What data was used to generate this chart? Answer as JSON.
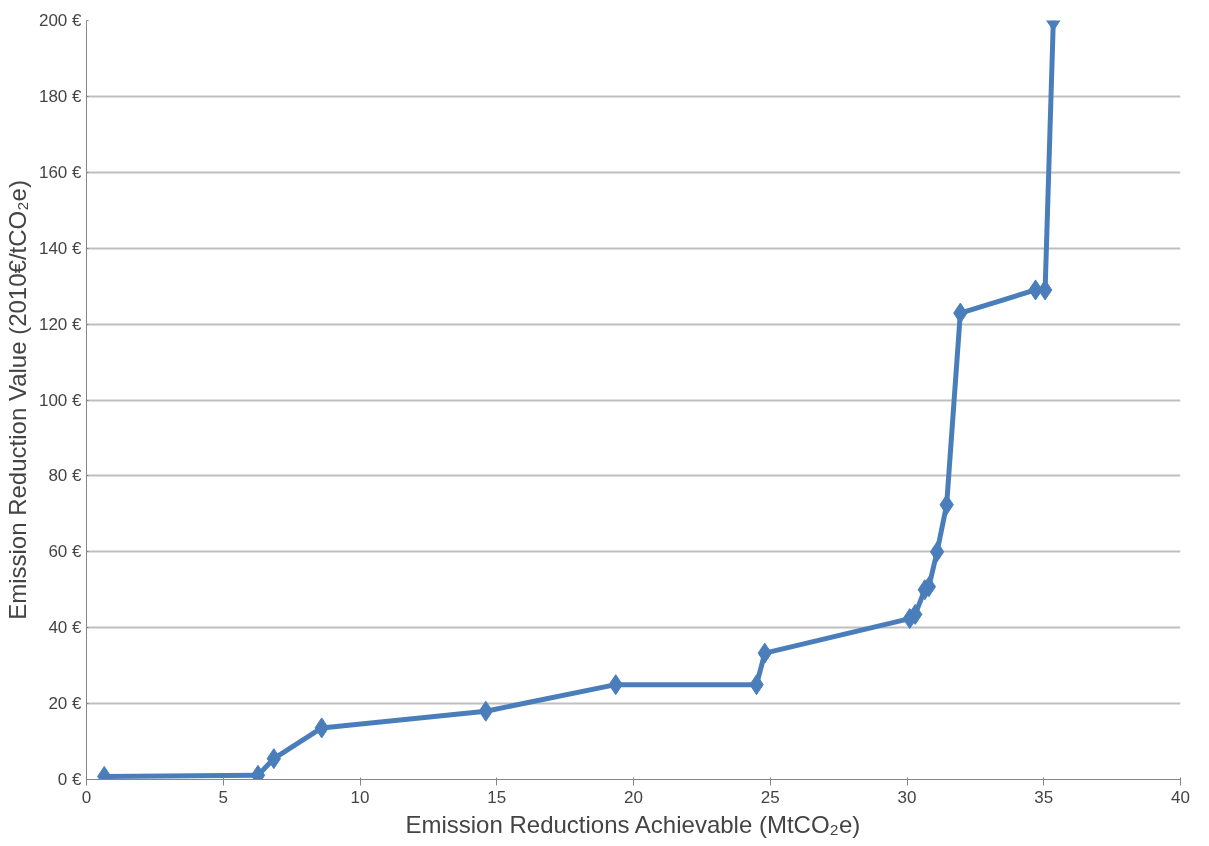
{
  "chart_data": {
    "type": "line",
    "xlabel": "Emission Reductions Achievable (MtCO₂e)",
    "ylabel": "Emission Reduction Value (2010€/tCO₂e)",
    "x": [
      0.65,
      6.27,
      6.85,
      8.6,
      14.6,
      19.35,
      24.5,
      24.8,
      30.1,
      30.3,
      30.65,
      30.8,
      31.1,
      31.45,
      31.95,
      34.7,
      35.05,
      35.35
    ],
    "series": [
      {
        "color": "#4a7ebb",
        "values": [
          0.8,
          1.1,
          5.5,
          13.6,
          18,
          25,
          25,
          33.3,
          42.4,
          43.5,
          50,
          50.8,
          60,
          72.4,
          122.9,
          129,
          129,
          200
        ]
      }
    ],
    "xlim": [
      0,
      40
    ],
    "xticks": [
      0,
      5,
      10,
      15,
      20,
      25,
      30,
      35,
      40
    ],
    "ylim": [
      0,
      200
    ],
    "yticks": [
      {
        "value": 0,
        "label": "0 €"
      },
      {
        "value": 20,
        "label": "20 €"
      },
      {
        "value": 40,
        "label": "40 €"
      },
      {
        "value": 60,
        "label": "60 €"
      },
      {
        "value": 80,
        "label": "80 €"
      },
      {
        "value": 100,
        "label": "100 €"
      },
      {
        "value": 120,
        "label": "120 €"
      },
      {
        "value": 140,
        "label": "140 €"
      },
      {
        "value": 160,
        "label": "160 €"
      },
      {
        "value": 180,
        "label": "180 €"
      },
      {
        "value": 200,
        "label": "200 €"
      }
    ],
    "grid": "y",
    "marker": "diamond",
    "line_style": "solid"
  }
}
